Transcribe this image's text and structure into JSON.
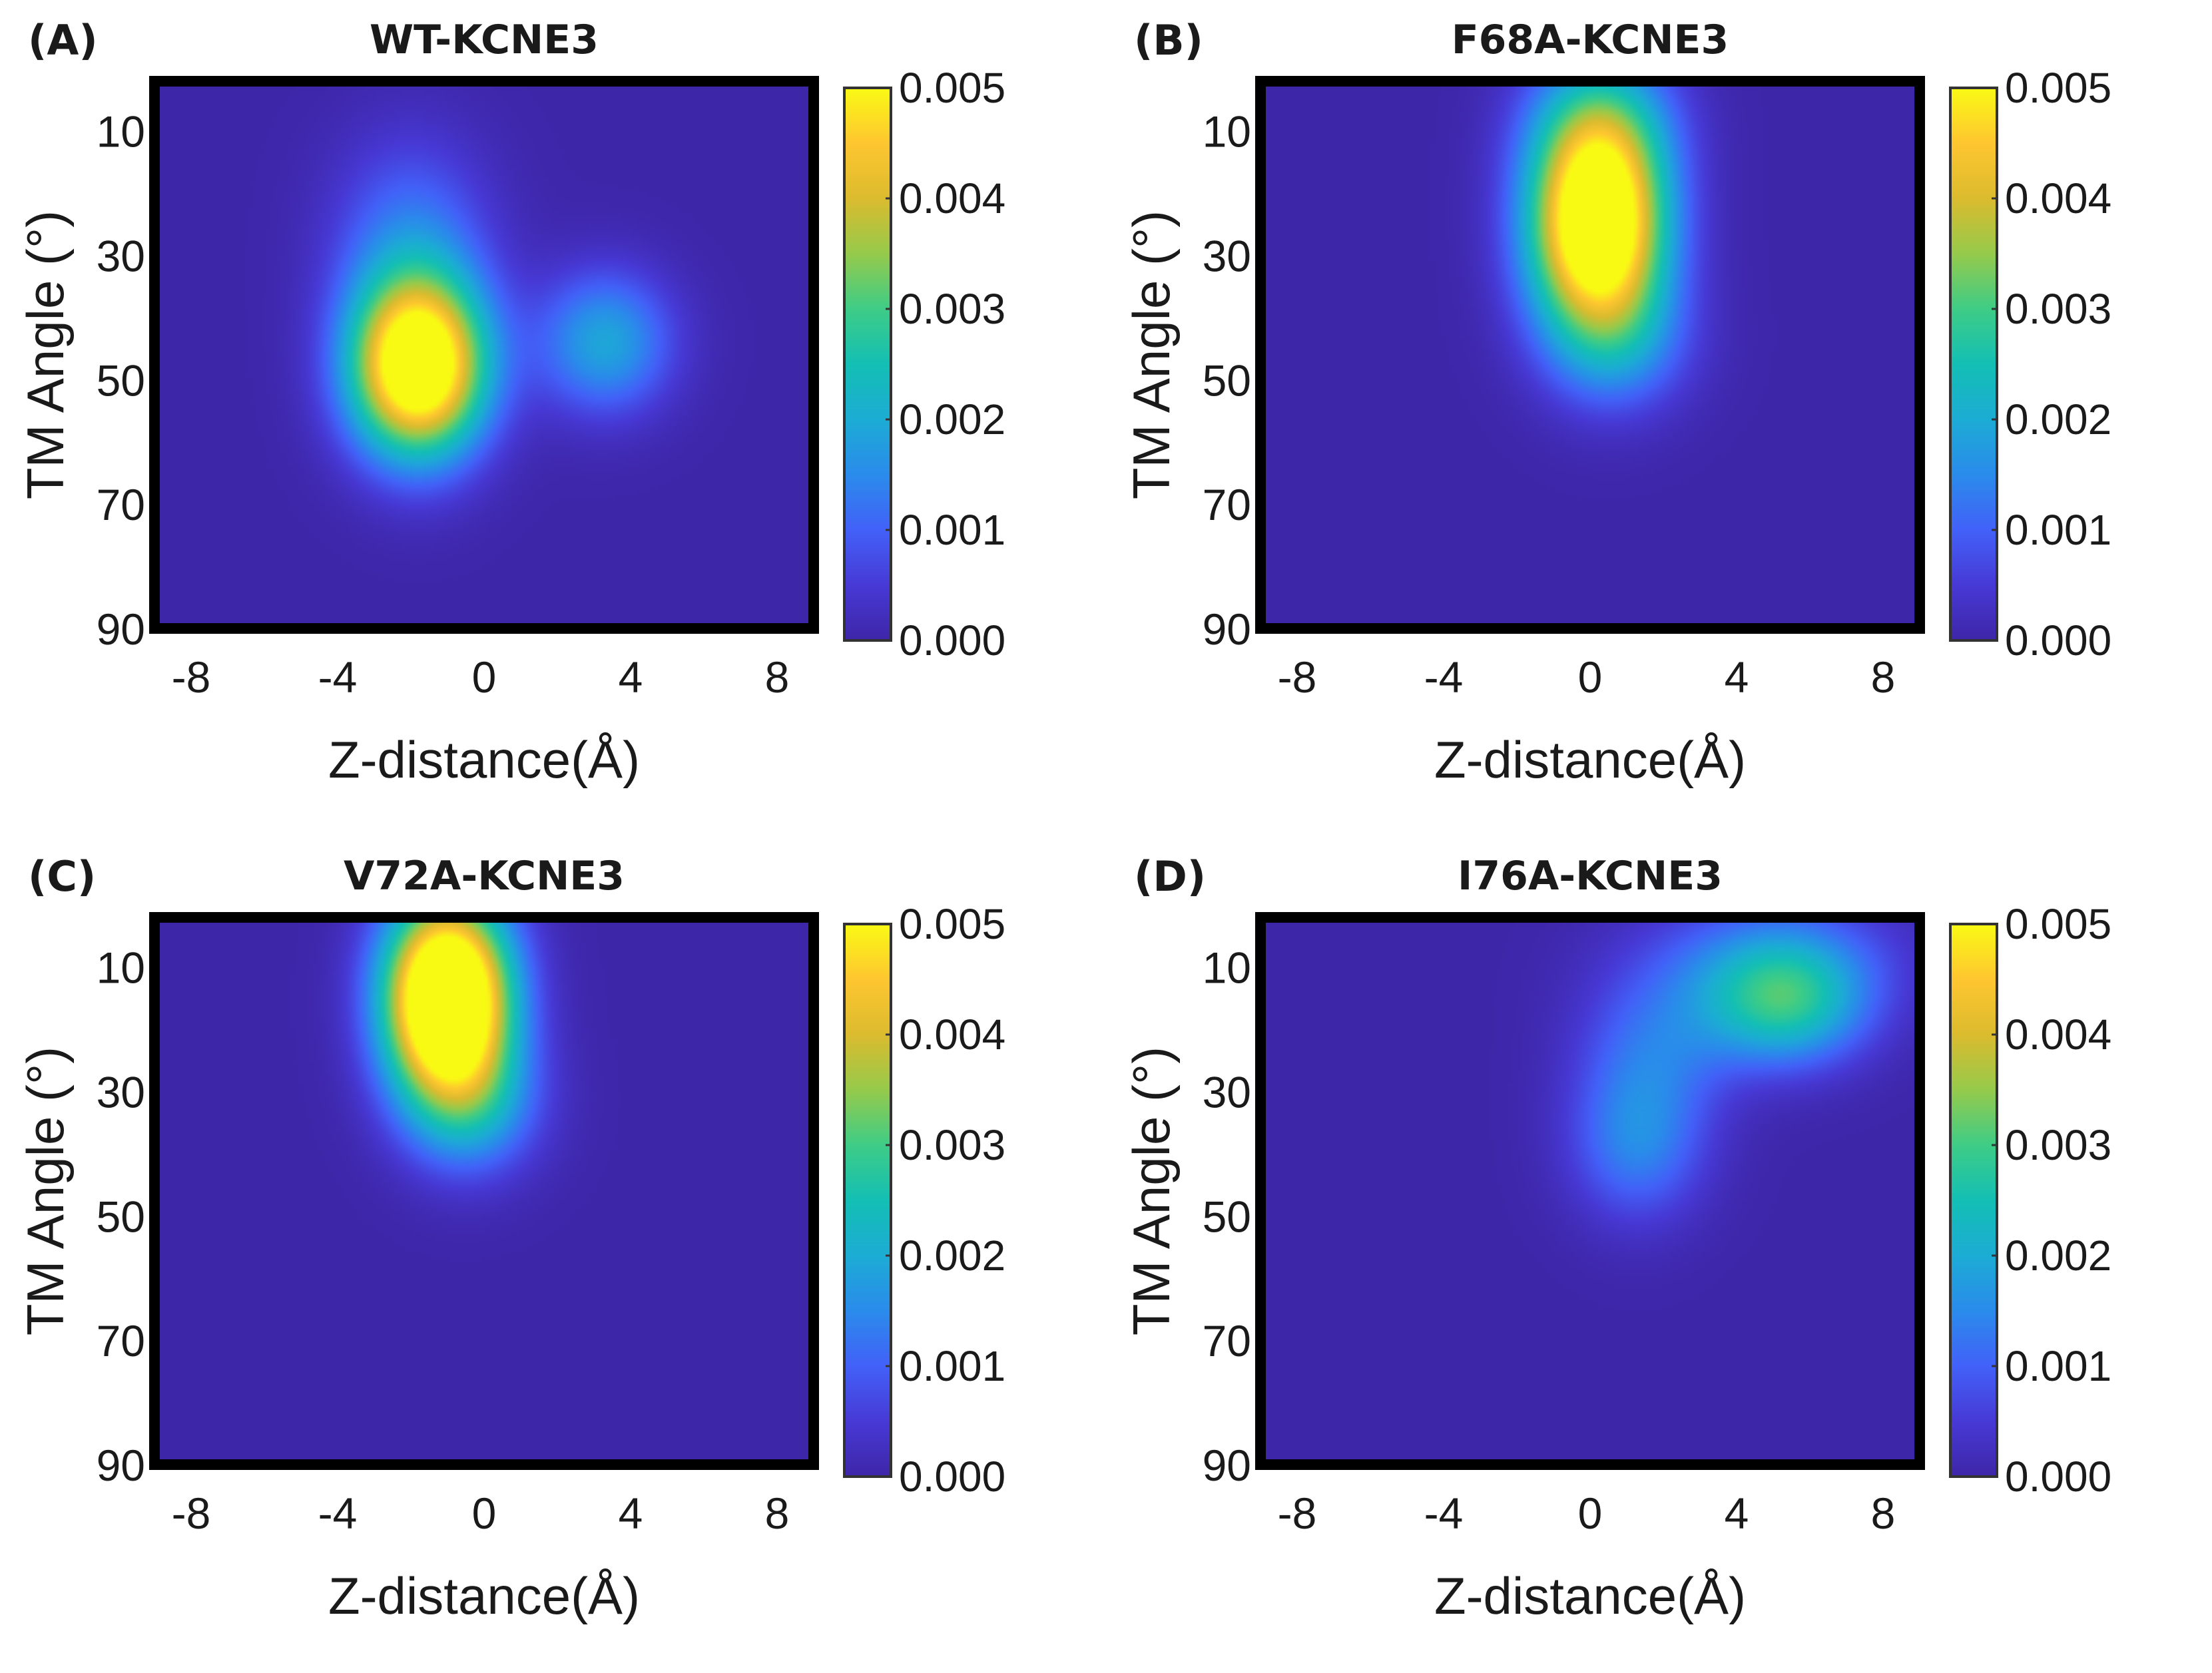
{
  "chart_data": [
    {
      "type": "heatmap",
      "panel_label": "(A)",
      "title": "WT-KCNE3",
      "xlabel": "Z-distance(Å)",
      "ylabel": "TM Angle (°)",
      "x_ticks": [
        "-8",
        "-4",
        "0",
        "4",
        "8"
      ],
      "y_ticks": [
        "10",
        "30",
        "50",
        "70",
        "90"
      ],
      "xlim": [
        -9,
        9
      ],
      "ylim": [
        2,
        90
      ],
      "colorbar": {
        "ticks": [
          "0.000",
          "0.001",
          "0.002",
          "0.003",
          "0.004",
          "0.005"
        ],
        "range": [
          0,
          0.005
        ],
        "colormap": "parula"
      },
      "peaks": [
        {
          "z": -1.8,
          "angle": 48,
          "value": 0.0062,
          "sigma_z": 1.3,
          "sigma_angle": 10
        },
        {
          "z": -2.0,
          "angle": 28,
          "value": 0.0012,
          "sigma_z": 1.5,
          "sigma_angle": 12
        },
        {
          "z": 3.3,
          "angle": 44,
          "value": 0.0019,
          "sigma_z": 1.3,
          "sigma_angle": 8
        }
      ]
    },
    {
      "type": "heatmap",
      "panel_label": "(B)",
      "title": "F68A-KCNE3",
      "xlabel": "Z-distance(Å)",
      "ylabel": "TM Angle (°)",
      "x_ticks": [
        "-8",
        "-4",
        "0",
        "4",
        "8"
      ],
      "y_ticks": [
        "10",
        "30",
        "50",
        "70",
        "90"
      ],
      "xlim": [
        -9,
        9
      ],
      "ylim": [
        2,
        90
      ],
      "colorbar": {
        "ticks": [
          "0.000",
          "0.001",
          "0.002",
          "0.003",
          "0.004",
          "0.005"
        ],
        "range": [
          0,
          0.005
        ],
        "colormap": "parula"
      },
      "peaks": [
        {
          "z": 0.2,
          "angle": 25,
          "value": 0.0065,
          "sigma_z": 1.3,
          "sigma_angle": 12
        },
        {
          "z": 0.3,
          "angle": 8,
          "value": 0.0015,
          "sigma_z": 1.4,
          "sigma_angle": 8
        },
        {
          "z": 0.8,
          "angle": 44,
          "value": 0.0012,
          "sigma_z": 1.4,
          "sigma_angle": 8
        }
      ]
    },
    {
      "type": "heatmap",
      "panel_label": "(C)",
      "title": "V72A-KCNE3",
      "xlabel": "Z-distance(Å)",
      "ylabel": "TM Angle (°)",
      "x_ticks": [
        "-8",
        "-4",
        "0",
        "4",
        "8"
      ],
      "y_ticks": [
        "10",
        "30",
        "50",
        "70",
        "90"
      ],
      "xlim": [
        -9,
        9
      ],
      "ylim": [
        2,
        90
      ],
      "colorbar": {
        "ticks": [
          "0.000",
          "0.001",
          "0.002",
          "0.003",
          "0.004",
          "0.005"
        ],
        "range": [
          0,
          0.005
        ],
        "colormap": "parula"
      },
      "peaks": [
        {
          "z": -1.0,
          "angle": 15,
          "value": 0.0075,
          "sigma_z": 1.2,
          "sigma_angle": 11
        },
        {
          "z": -0.3,
          "angle": 32,
          "value": 0.0016,
          "sigma_z": 1.3,
          "sigma_angle": 8
        }
      ]
    },
    {
      "type": "heatmap",
      "panel_label": "(D)",
      "title": "I76A-KCNE3",
      "xlabel": "Z-distance(Å)",
      "ylabel": "TM Angle (°)",
      "x_ticks": [
        "-8",
        "-4",
        "0",
        "4",
        "8"
      ],
      "y_ticks": [
        "10",
        "30",
        "50",
        "70",
        "90"
      ],
      "xlim": [
        -9,
        9
      ],
      "ylim": [
        2,
        90
      ],
      "colorbar": {
        "ticks": [
          "0.000",
          "0.001",
          "0.002",
          "0.003",
          "0.004",
          "0.005"
        ],
        "range": [
          0,
          0.005
        ],
        "colormap": "parula"
      },
      "peaks": [
        {
          "z": 5.3,
          "angle": 16,
          "value": 0.0025,
          "sigma_z": 1.6,
          "sigma_angle": 7
        },
        {
          "z": 5.0,
          "angle": 8,
          "value": 0.001,
          "sigma_z": 2.4,
          "sigma_angle": 7
        },
        {
          "z": 1.3,
          "angle": 38,
          "value": 0.0014,
          "sigma_z": 1.3,
          "sigma_angle": 9
        },
        {
          "z": 1.8,
          "angle": 22,
          "value": 0.001,
          "sigma_z": 1.5,
          "sigma_angle": 9
        }
      ]
    }
  ]
}
